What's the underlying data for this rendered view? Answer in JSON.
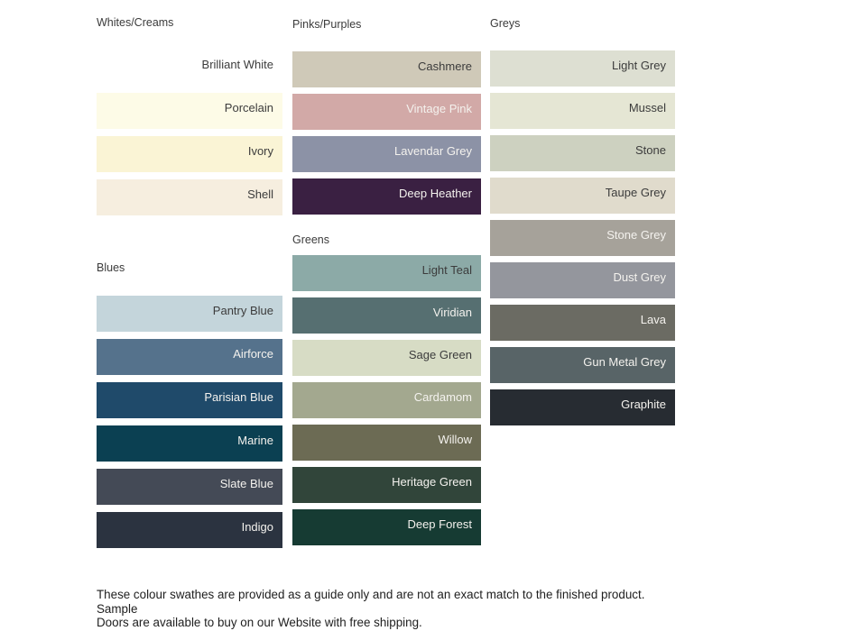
{
  "palette": {
    "columns": [
      {
        "groups": [
          {
            "title": "Whites/Creams",
            "swatches": [
              {
                "name": "Brilliant White",
                "color": "#FFFFFF",
                "text": "dark"
              },
              {
                "name": "Porcelain",
                "color": "#FDFBE7",
                "text": "dark"
              },
              {
                "name": "Ivory",
                "color": "#FAF4D5",
                "text": "dark"
              },
              {
                "name": "Shell",
                "color": "#F6EEDF",
                "text": "dark"
              }
            ]
          },
          {
            "title": "Blues",
            "swatches": [
              {
                "name": "Pantry Blue",
                "color": "#C4D5DB",
                "text": "dark"
              },
              {
                "name": "Airforce",
                "color": "#55728C",
                "text": "light"
              },
              {
                "name": "Parisian Blue",
                "color": "#1F4A6A",
                "text": "light"
              },
              {
                "name": "Marine",
                "color": "#0B4052",
                "text": "light"
              },
              {
                "name": "Slate Blue",
                "color": "#444A56",
                "text": "light"
              },
              {
                "name": "Indigo",
                "color": "#2B3340",
                "text": "light"
              }
            ]
          }
        ]
      },
      {
        "groups": [
          {
            "title": "Pinks/Purples",
            "swatches": [
              {
                "name": "Cashmere",
                "color": "#CFC9B8",
                "text": "dark"
              },
              {
                "name": "Vintage Pink",
                "color": "#D2A9A7",
                "text": "light"
              },
              {
                "name": "Lavendar Grey",
                "color": "#8C92A6",
                "text": "light"
              },
              {
                "name": "Deep Heather",
                "color": "#3A2042",
                "text": "light"
              }
            ]
          },
          {
            "title": "Greens",
            "swatches": [
              {
                "name": "Light Teal",
                "color": "#8CAAA7",
                "text": "dark"
              },
              {
                "name": "Viridian",
                "color": "#566F71",
                "text": "light"
              },
              {
                "name": "Sage Green",
                "color": "#D7DCC5",
                "text": "dark"
              },
              {
                "name": "Cardamom",
                "color": "#A3A88F",
                "text": "light"
              },
              {
                "name": "Willow",
                "color": "#6C6B54",
                "text": "light"
              },
              {
                "name": "Heritage Green",
                "color": "#31453A",
                "text": "light"
              },
              {
                "name": "Deep Forest",
                "color": "#163B33",
                "text": "light"
              }
            ]
          }
        ]
      },
      {
        "groups": [
          {
            "title": "Greys",
            "swatches": [
              {
                "name": "Light Grey",
                "color": "#DDDFD2",
                "text": "dark"
              },
              {
                "name": "Mussel",
                "color": "#E5E6D4",
                "text": "dark"
              },
              {
                "name": "Stone",
                "color": "#CDD1C0",
                "text": "dark"
              },
              {
                "name": "Taupe Grey",
                "color": "#E0DBCC",
                "text": "dark"
              },
              {
                "name": "Stone Grey",
                "color": "#A6A29A",
                "text": "light"
              },
              {
                "name": "Dust Grey",
                "color": "#94969D",
                "text": "light"
              },
              {
                "name": "Lava",
                "color": "#6B6B63",
                "text": "light"
              },
              {
                "name": "Gun Metal Grey",
                "color": "#586467",
                "text": "light"
              },
              {
                "name": "Graphite",
                "color": "#272C32",
                "text": "light"
              }
            ]
          }
        ]
      }
    ]
  },
  "footer": {
    "lines": [
      "These colour swathes are provided as a guide only and are not an exact match to the finished product.  Sample",
      "Doors are available to buy on our Website with free shipping."
    ]
  },
  "colors": {
    "background": "#FFFFFF",
    "heading": "#3B3B3B",
    "label_dark": "#3C3C3C",
    "label_light": "#F4F2EE",
    "footer_text": "#1E1E1E"
  }
}
